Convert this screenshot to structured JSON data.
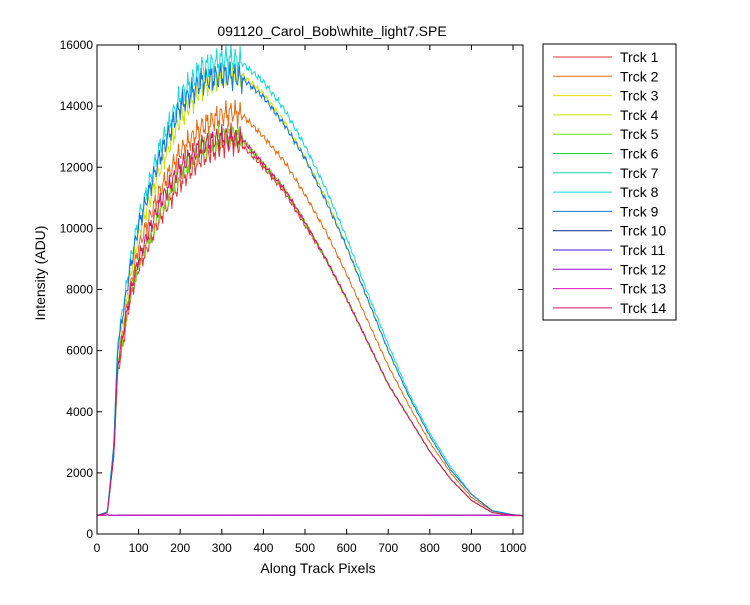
{
  "chart_data": {
    "type": "line",
    "title": "091120_Carol_Bob\\white_light7.SPE",
    "xlabel": "Along Track Pixels",
    "ylabel": "Intensity (ADU)",
    "xlim": [
      0,
      1024
    ],
    "ylim": [
      0,
      16000
    ],
    "xticks": [
      0,
      100,
      200,
      300,
      400,
      500,
      600,
      700,
      800,
      900,
      1000
    ],
    "yticks": [
      0,
      2000,
      4000,
      6000,
      8000,
      10000,
      12000,
      14000,
      16000
    ],
    "grid": false,
    "legend_position": "outside-right",
    "x": [
      0,
      25,
      40,
      50,
      60,
      80,
      100,
      150,
      200,
      250,
      300,
      325,
      350,
      400,
      450,
      500,
      550,
      600,
      650,
      700,
      750,
      800,
      850,
      900,
      950,
      1000,
      1024
    ],
    "series": [
      {
        "name": "Trck 1",
        "color": "#e8313a",
        "values": [
          600,
          700,
          2500,
          5300,
          6000,
          7700,
          8700,
          10300,
          11500,
          12300,
          12700,
          12800,
          12700,
          12000,
          11200,
          10100,
          9000,
          7700,
          6300,
          4900,
          3800,
          2700,
          1800,
          1100,
          700,
          620,
          600
        ]
      },
      {
        "name": "Trck 2",
        "color": "#e86a10",
        "values": [
          600,
          700,
          2600,
          5600,
          6500,
          8100,
          9400,
          11200,
          12500,
          13300,
          13700,
          13800,
          13700,
          13000,
          12200,
          11100,
          9900,
          8500,
          7000,
          5500,
          4200,
          3000,
          2000,
          1200,
          750,
          630,
          600
        ]
      },
      {
        "name": "Trck 3",
        "color": "#e6e000",
        "values": [
          605,
          625,
          605,
          610,
          612,
          612,
          612,
          612,
          613,
          613,
          614,
          614,
          614,
          614,
          614,
          613,
          613,
          613,
          612,
          612,
          611,
          611,
          611,
          610,
          610,
          607,
          605
        ]
      },
      {
        "name": "Trck 4",
        "color": "#c8e600",
        "values": [
          600,
          720,
          2800,
          6000,
          6900,
          8500,
          9800,
          11900,
          13600,
          14600,
          15000,
          15100,
          15000,
          14400,
          13500,
          12300,
          11000,
          9400,
          7700,
          6000,
          4500,
          3200,
          2100,
          1300,
          760,
          630,
          600
        ]
      },
      {
        "name": "Trck 5",
        "color": "#6ee010",
        "values": [
          600,
          690,
          2500,
          5400,
          6200,
          7800,
          8800,
          10500,
          11800,
          12600,
          13000,
          13050,
          12900,
          12100,
          11300,
          10200,
          9000,
          7700,
          6300,
          4900,
          3800,
          2700,
          1800,
          1100,
          700,
          620,
          600
        ]
      },
      {
        "name": "Trck 6",
        "color": "#14d43c",
        "values": [
          605,
          625,
          606,
          610,
          611,
          611,
          612,
          612,
          613,
          613,
          614,
          614,
          614,
          614,
          614,
          613,
          613,
          613,
          612,
          612,
          611,
          611,
          611,
          610,
          610,
          607,
          605
        ]
      },
      {
        "name": "Trck 7",
        "color": "#14d4a0",
        "values": [
          605,
          625,
          606,
          610,
          611,
          611,
          612,
          612,
          613,
          613,
          614,
          614,
          614,
          614,
          614,
          613,
          613,
          613,
          612,
          612,
          611,
          611,
          611,
          610,
          610,
          607,
          605
        ]
      },
      {
        "name": "Trck 8",
        "color": "#14d8dc",
        "values": [
          600,
          730,
          2900,
          6300,
          7200,
          8900,
          10300,
          12600,
          14300,
          15200,
          15500,
          15550,
          15400,
          14800,
          13900,
          12700,
          11300,
          9700,
          7900,
          6200,
          4600,
          3300,
          2200,
          1300,
          770,
          630,
          600
        ]
      },
      {
        "name": "Trck 9",
        "color": "#1474e0",
        "values": [
          600,
          720,
          2800,
          6100,
          7000,
          8700,
          10100,
          12300,
          14000,
          14800,
          15000,
          15000,
          14900,
          14300,
          13400,
          12300,
          10900,
          9400,
          7700,
          6000,
          4500,
          3200,
          2100,
          1300,
          760,
          630,
          600
        ]
      },
      {
        "name": "Trck 10",
        "color": "#102890",
        "values": [
          605,
          625,
          606,
          610,
          611,
          611,
          612,
          612,
          613,
          613,
          614,
          614,
          614,
          614,
          614,
          613,
          613,
          613,
          612,
          612,
          611,
          611,
          611,
          610,
          610,
          607,
          605
        ]
      },
      {
        "name": "Trck 11",
        "color": "#3c14d4",
        "values": [
          605,
          625,
          606,
          610,
          611,
          611,
          612,
          612,
          613,
          613,
          614,
          614,
          614,
          614,
          614,
          613,
          613,
          613,
          612,
          612,
          611,
          611,
          611,
          610,
          610,
          607,
          605
        ]
      },
      {
        "name": "Trck 12",
        "color": "#9614c8",
        "values": [
          605,
          625,
          606,
          610,
          611,
          611,
          612,
          612,
          613,
          613,
          614,
          614,
          614,
          614,
          614,
          613,
          613,
          613,
          612,
          612,
          611,
          611,
          611,
          610,
          610,
          607,
          605
        ]
      },
      {
        "name": "Trck 13",
        "color": "#e614c8",
        "values": [
          605,
          625,
          606,
          610,
          611,
          611,
          612,
          612,
          613,
          613,
          614,
          614,
          614,
          614,
          614,
          613,
          613,
          613,
          612,
          612,
          611,
          611,
          611,
          610,
          610,
          607,
          605
        ]
      },
      {
        "name": "Trck 14",
        "color": "#d4146e",
        "values": [
          600,
          690,
          2500,
          5500,
          6300,
          7900,
          9000,
          10800,
          12000,
          12700,
          13000,
          13000,
          12900,
          12100,
          11300,
          10200,
          9000,
          7700,
          6300,
          4900,
          3800,
          2700,
          1800,
          1100,
          700,
          620,
          600
        ]
      }
    ]
  }
}
